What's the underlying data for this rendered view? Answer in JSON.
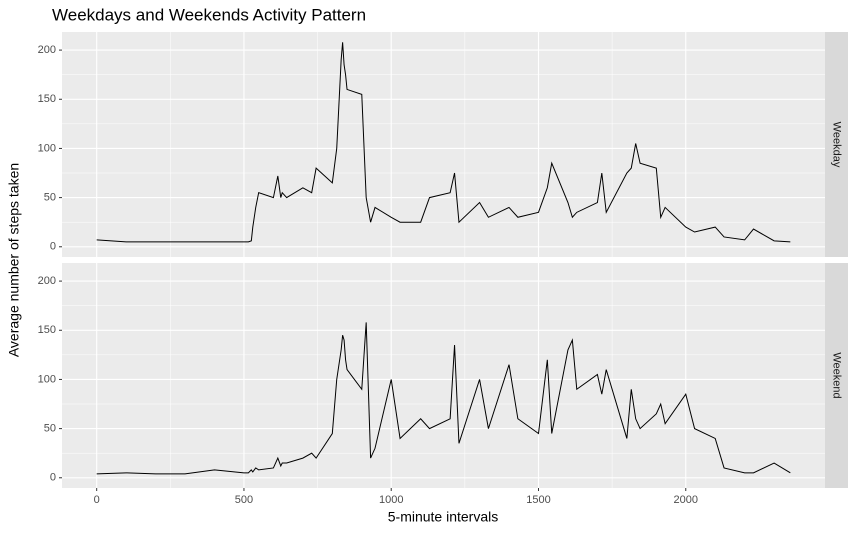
{
  "chart_data": {
    "type": "line",
    "title": "Weekdays and Weekends Activity Pattern",
    "xlabel": "5-minute intervals",
    "ylabel": "Average number of steps taken",
    "x": [
      0,
      100,
      200,
      300,
      400,
      500,
      515,
      525,
      530,
      540,
      550,
      600,
      615,
      625,
      630,
      645,
      700,
      730,
      745,
      800,
      815,
      830,
      835,
      840,
      845,
      850,
      900,
      915,
      930,
      945,
      1000,
      1030,
      1100,
      1130,
      1200,
      1215,
      1230,
      1300,
      1330,
      1400,
      1430,
      1500,
      1530,
      1545,
      1600,
      1615,
      1630,
      1700,
      1715,
      1730,
      1800,
      1815,
      1830,
      1845,
      1900,
      1915,
      1930,
      2000,
      2030,
      2100,
      2130,
      2200,
      2230,
      2300,
      2355
    ],
    "xlim": [
      -117.75,
      2472.75
    ],
    "xticks": [
      0,
      500,
      1000,
      1500,
      2000
    ],
    "ylim": [
      -10.4,
      218.4
    ],
    "yticks": [
      0,
      50,
      100,
      150,
      200
    ],
    "grid": true,
    "facet": true,
    "series": [
      {
        "name": "Weekday",
        "color": "#000000",
        "values": [
          7,
          5,
          5,
          5,
          5,
          5,
          5,
          6,
          20,
          40,
          55,
          50,
          72,
          50,
          55,
          50,
          60,
          55,
          80,
          65,
          100,
          190,
          208,
          185,
          175,
          160,
          155,
          50,
          25,
          40,
          30,
          25,
          25,
          50,
          55,
          75,
          25,
          45,
          30,
          40,
          30,
          35,
          60,
          85,
          45,
          30,
          35,
          45,
          75,
          35,
          75,
          80,
          105,
          85,
          80,
          30,
          40,
          20,
          15,
          20,
          10,
          7,
          18,
          6,
          5
        ]
      },
      {
        "name": "Weekend",
        "color": "#000000",
        "values": [
          4,
          5,
          4,
          4,
          8,
          5,
          5,
          8,
          6,
          10,
          8,
          10,
          20,
          12,
          15,
          15,
          20,
          25,
          20,
          45,
          100,
          130,
          145,
          140,
          120,
          110,
          90,
          158,
          20,
          30,
          100,
          40,
          60,
          50,
          60,
          135,
          35,
          100,
          50,
          115,
          60,
          45,
          120,
          45,
          130,
          140,
          90,
          105,
          85,
          110,
          40,
          90,
          60,
          50,
          65,
          75,
          55,
          85,
          50,
          40,
          10,
          5,
          5,
          15,
          5
        ]
      }
    ]
  }
}
